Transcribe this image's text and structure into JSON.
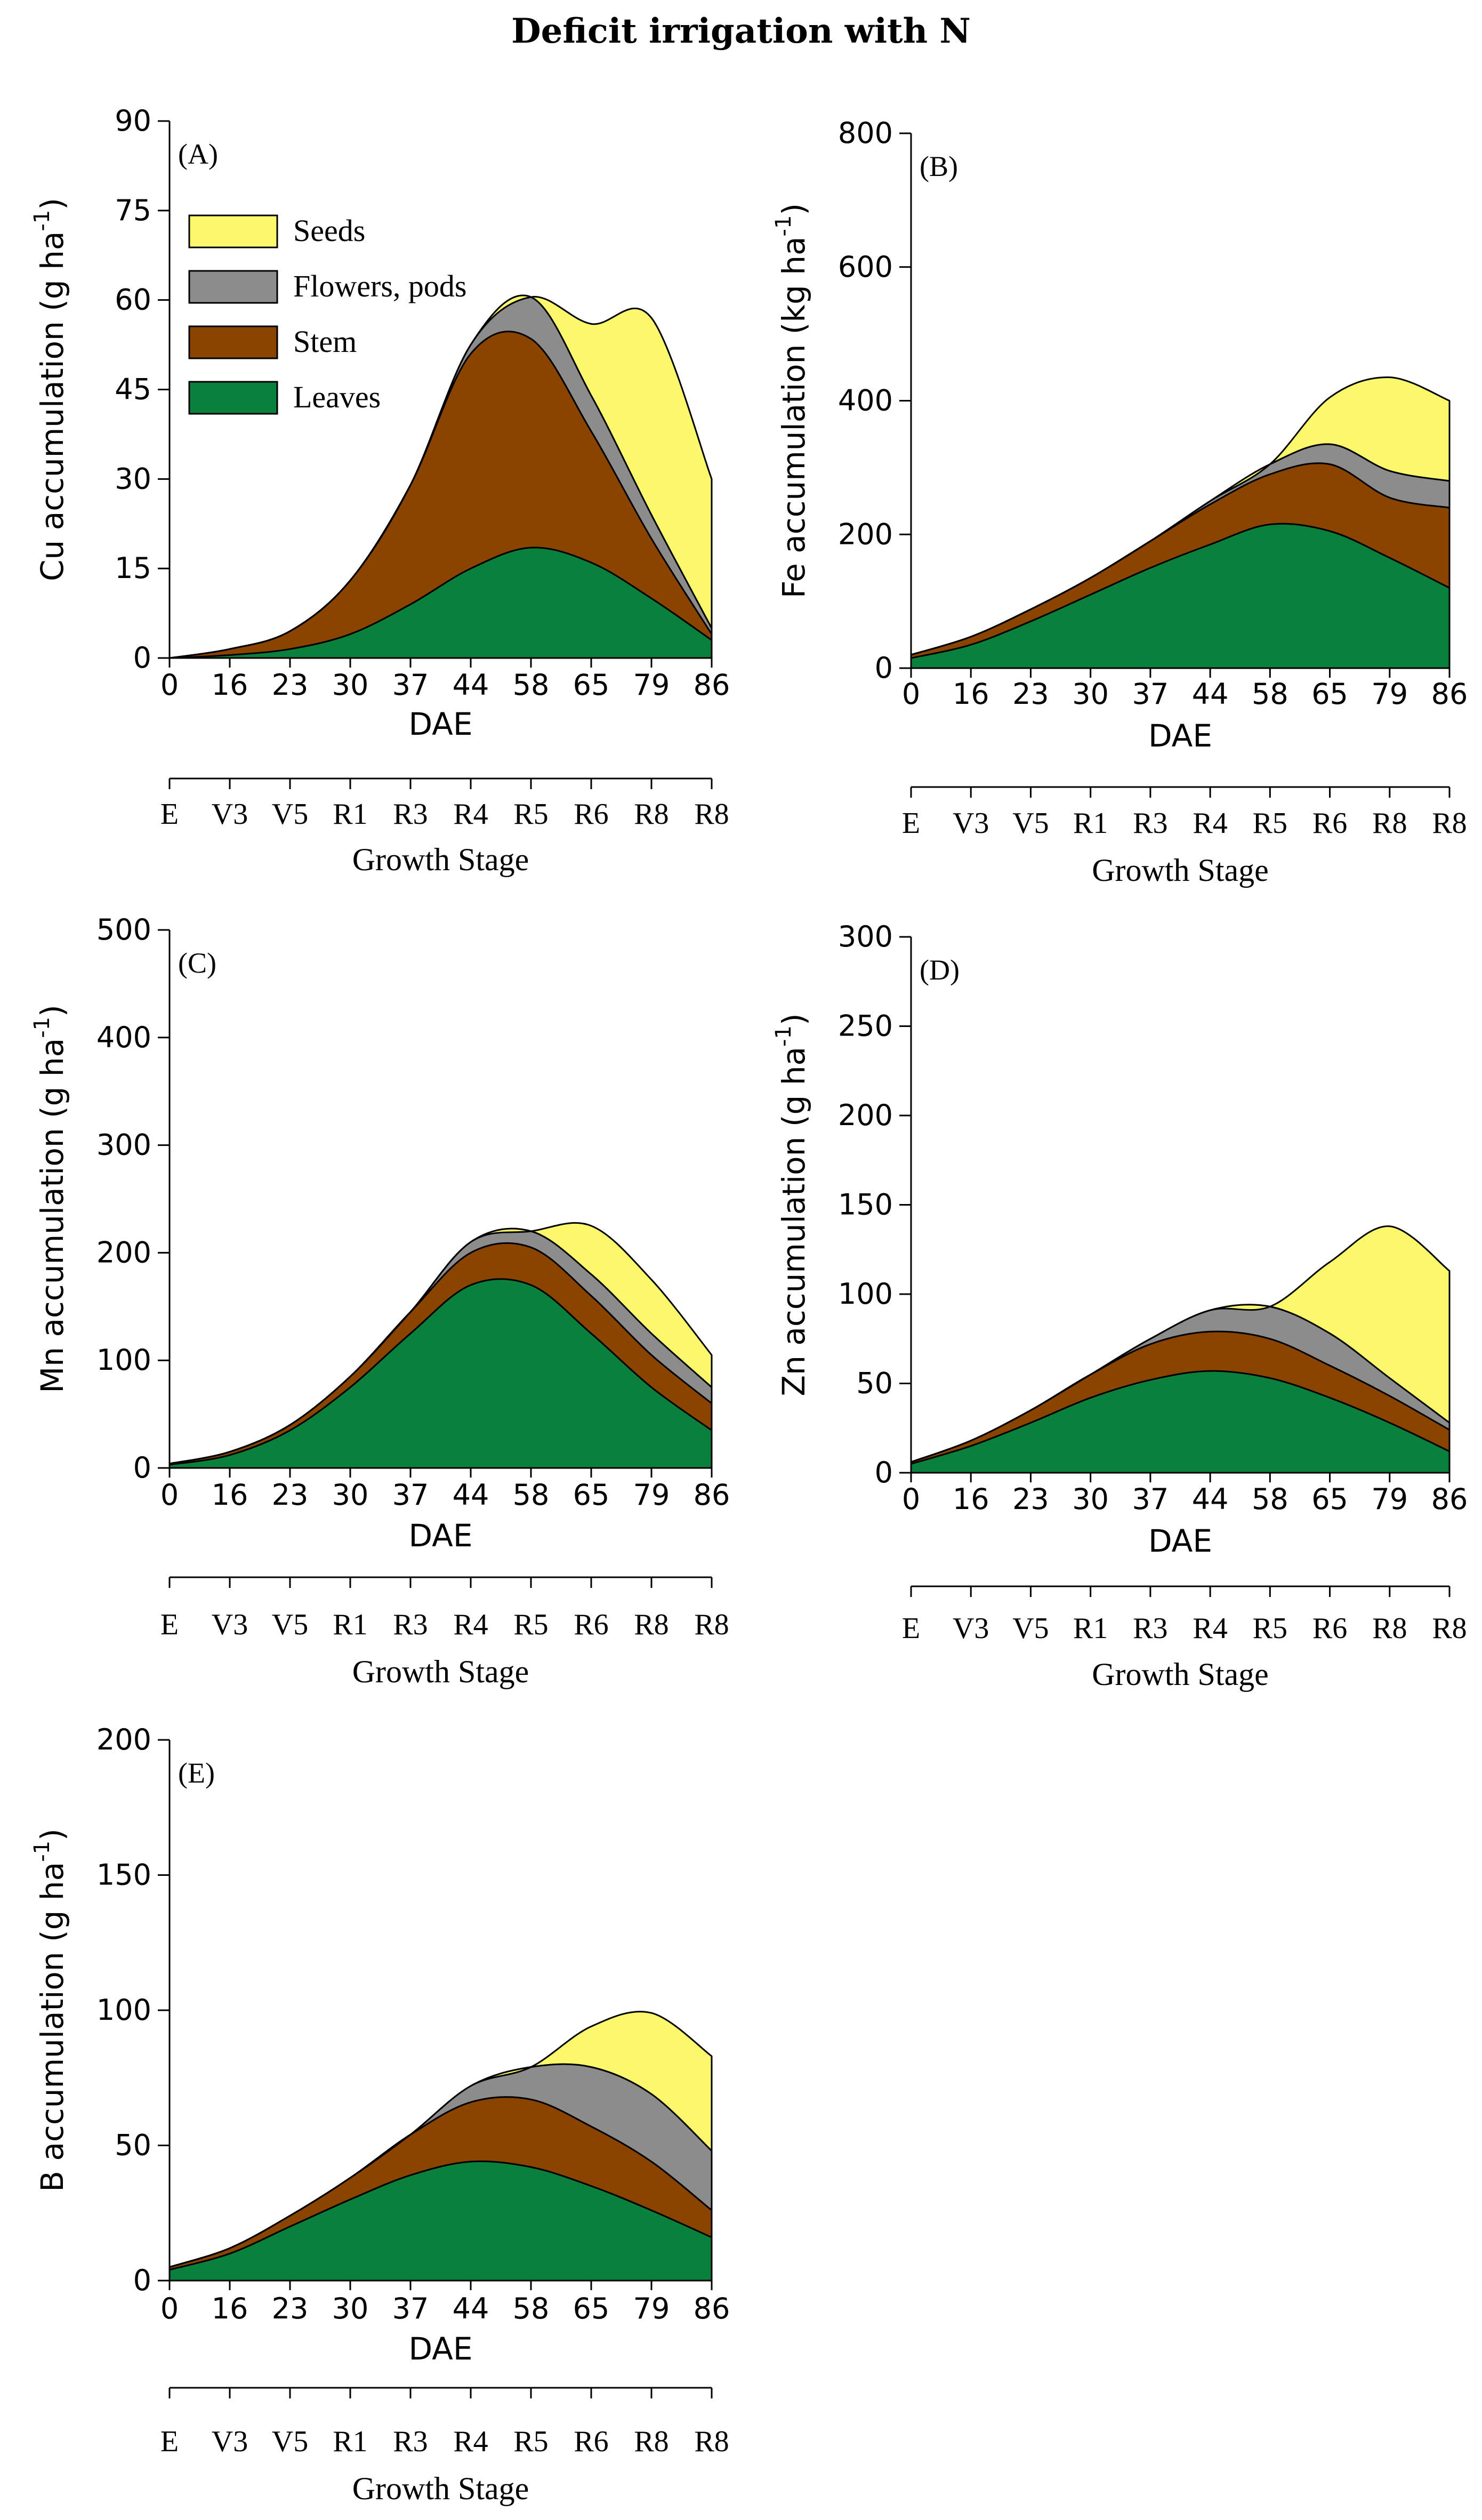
{
  "figure": {
    "title": "Deficit irrigation with N"
  },
  "legend": [
    {
      "label": "Seeds",
      "color": "#fbf96b"
    },
    {
      "label": "Flowers, pods",
      "color": "#8c8c8c"
    },
    {
      "label": "Stem",
      "color": "#8b4300"
    },
    {
      "label": "Leaves",
      "color": "#09803b"
    }
  ],
  "chart_data": [
    {
      "type": "area",
      "panel": "(A)",
      "ylabel_main": "Cu accumulation (g ha",
      "ylabel_sup": "-1",
      "ylabel_close": ")",
      "ylim": [
        0,
        90
      ],
      "yticks": [
        0,
        15,
        30,
        45,
        60,
        75,
        90
      ],
      "xlabel": "DAE",
      "x_ticks": [
        "0",
        "16",
        "23",
        "30",
        "37",
        "44",
        "58",
        "65",
        "79",
        "86"
      ],
      "stage_label": "Growth Stage",
      "stages": [
        "E",
        "V3",
        "V5",
        "R1",
        "R3",
        "R4",
        "R5",
        "R6",
        "R8",
        "R8"
      ],
      "series": [
        {
          "name": "Leaves",
          "values": [
            0,
            0.5,
            1.5,
            4,
            9,
            15,
            18.5,
            16,
            10,
            3
          ]
        },
        {
          "name": "Stem",
          "values": [
            0,
            1,
            3,
            9,
            20,
            36,
            35,
            22,
            10,
            1
          ]
        },
        {
          "name": "Flowers, pods",
          "values": [
            0,
            0,
            0,
            0,
            0,
            1.5,
            7,
            6,
            4,
            1
          ]
        },
        {
          "name": "Seeds",
          "values": [
            0,
            0,
            0,
            0,
            0,
            0,
            0,
            12,
            33,
            25
          ]
        }
      ]
    },
    {
      "type": "area",
      "panel": "(B)",
      "ylabel_main": "Fe  accumulation (kg ha",
      "ylabel_sup": "-1",
      "ylabel_close": ")",
      "ylim": [
        0,
        800
      ],
      "yticks": [
        0,
        200,
        400,
        600,
        800
      ],
      "xlabel": "DAE",
      "x_ticks": [
        "0",
        "16",
        "23",
        "30",
        "37",
        "44",
        "58",
        "65",
        "79",
        "86"
      ],
      "stage_label": "Growth Stage",
      "stages": [
        "E",
        "V3",
        "V5",
        "R1",
        "R3",
        "R4",
        "R5",
        "R6",
        "R8",
        "R8"
      ],
      "series": [
        {
          "name": "Leaves",
          "values": [
            15,
            35,
            70,
            110,
            150,
            185,
            215,
            205,
            165,
            120
          ]
        },
        {
          "name": "Stem",
          "values": [
            5,
            12,
            18,
            25,
            40,
            60,
            75,
            100,
            90,
            120
          ]
        },
        {
          "name": "Flowers, pods",
          "values": [
            0,
            0,
            0,
            0,
            0,
            5,
            15,
            30,
            40,
            40
          ]
        },
        {
          "name": "Seeds",
          "values": [
            0,
            0,
            0,
            0,
            0,
            0,
            0,
            70,
            140,
            120
          ]
        }
      ]
    },
    {
      "type": "area",
      "panel": "(C)",
      "ylabel_main": "Mn  accumulation (g ha",
      "ylabel_sup": "-1",
      "ylabel_close": ")",
      "ylim": [
        0,
        500
      ],
      "yticks": [
        0,
        100,
        200,
        300,
        400,
        500
      ],
      "xlabel": "DAE",
      "x_ticks": [
        "0",
        "16",
        "23",
        "30",
        "37",
        "44",
        "58",
        "65",
        "79",
        "86"
      ],
      "stage_label": "Growth Stage",
      "stages": [
        "E",
        "V3",
        "V5",
        "R1",
        "R3",
        "R4",
        "R5",
        "R6",
        "R8",
        "R8"
      ],
      "series": [
        {
          "name": "Leaves",
          "values": [
            3,
            12,
            35,
            75,
            125,
            170,
            170,
            125,
            75,
            35
          ]
        },
        {
          "name": "Stem",
          "values": [
            1,
            3,
            5,
            10,
            20,
            30,
            35,
            35,
            30,
            25
          ]
        },
        {
          "name": "Flowers, pods",
          "values": [
            0,
            0,
            0,
            0,
            0,
            10,
            15,
            20,
            20,
            15
          ]
        },
        {
          "name": "Seeds",
          "values": [
            0,
            0,
            0,
            0,
            0,
            0,
            0,
            45,
            50,
            30
          ]
        }
      ]
    },
    {
      "type": "area",
      "panel": "(D)",
      "ylabel_main": "Zn  accumulation (g ha",
      "ylabel_sup": "-1",
      "ylabel_close": ")",
      "ylim": [
        0,
        300
      ],
      "yticks": [
        0,
        50,
        100,
        150,
        200,
        250,
        300
      ],
      "xlabel": "DAE",
      "x_ticks": [
        "0",
        "16",
        "23",
        "30",
        "37",
        "44",
        "58",
        "65",
        "79",
        "86"
      ],
      "stage_label": "Growth Stage",
      "stages": [
        "E",
        "V3",
        "V5",
        "R1",
        "R3",
        "R4",
        "R5",
        "R6",
        "R8",
        "R8"
      ],
      "series": [
        {
          "name": "Leaves",
          "values": [
            5,
            15,
            28,
            42,
            52,
            57,
            53,
            42,
            28,
            12
          ]
        },
        {
          "name": "Stem",
          "values": [
            1,
            3,
            7,
            13,
            20,
            22,
            22,
            18,
            15,
            12
          ]
        },
        {
          "name": "Flowers, pods",
          "values": [
            0,
            0,
            0,
            0,
            3,
            12,
            18,
            18,
            10,
            4
          ]
        },
        {
          "name": "Seeds",
          "values": [
            0,
            0,
            0,
            0,
            0,
            0,
            0,
            40,
            85,
            85
          ]
        }
      ]
    },
    {
      "type": "area",
      "panel": "(E)",
      "ylabel_main": "B  accumulation (g ha",
      "ylabel_sup": "-1",
      "ylabel_close": ")",
      "ylim": [
        0,
        200
      ],
      "yticks": [
        0,
        50,
        100,
        150,
        200
      ],
      "xlabel": "DAE",
      "x_ticks": [
        "0",
        "16",
        "23",
        "30",
        "37",
        "44",
        "58",
        "65",
        "79",
        "86"
      ],
      "stage_label": "Growth Stage",
      "stages": [
        "E",
        "V3",
        "V5",
        "R1",
        "R3",
        "R4",
        "R5",
        "R6",
        "R8",
        "R8"
      ],
      "series": [
        {
          "name": "Leaves",
          "values": [
            4,
            10,
            20,
            30,
            39,
            44,
            42,
            35,
            26,
            16
          ]
        },
        {
          "name": "Stem",
          "values": [
            1,
            2,
            4,
            8,
            15,
            22,
            25,
            22,
            18,
            10
          ]
        },
        {
          "name": "Flowers, pods",
          "values": [
            0,
            0,
            0,
            0,
            0,
            6,
            12,
            22,
            25,
            22
          ]
        },
        {
          "name": "Seeds",
          "values": [
            0,
            0,
            0,
            0,
            0,
            0,
            0,
            15,
            30,
            35
          ]
        }
      ]
    }
  ]
}
